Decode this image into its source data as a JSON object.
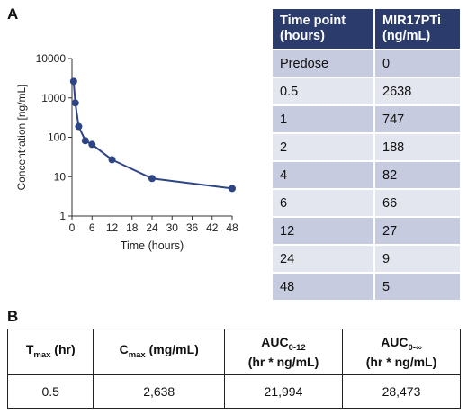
{
  "panels": {
    "a": "A",
    "b": "B"
  },
  "chart_data": {
    "type": "line",
    "xlabel": "Time (hours)",
    "ylabel": "Concentration [ng/mL]",
    "y_scale": "log",
    "xlim": [
      0,
      48
    ],
    "ylim": [
      1,
      10000
    ],
    "x_ticks": [
      "0",
      "6",
      "12",
      "18",
      "24",
      "30",
      "36",
      "42",
      "48"
    ],
    "y_ticks": [
      "1",
      "10",
      "100",
      "1000",
      "10000"
    ],
    "color": "#2e4585",
    "series": [
      {
        "x": [
          0.5,
          1,
          2,
          4,
          6,
          12,
          24,
          48
        ],
        "y": [
          2638,
          747,
          188,
          82,
          66,
          27,
          9,
          5
        ]
      }
    ]
  },
  "pk_table": {
    "headers": [
      "Time point (hours)",
      "MIR17PTi (ng/mL)"
    ],
    "rows": [
      [
        "Predose",
        "0"
      ],
      [
        "0.5",
        "2638"
      ],
      [
        "1",
        "747"
      ],
      [
        "2",
        "188"
      ],
      [
        "4",
        "82"
      ],
      [
        "6",
        "66"
      ],
      [
        "12",
        "27"
      ],
      [
        "24",
        "9"
      ],
      [
        "48",
        "5"
      ]
    ]
  },
  "params_table": {
    "headers": [
      {
        "main": "T",
        "sub": "max",
        "rest": " (hr)"
      },
      {
        "main": "C",
        "sub": "max",
        "rest": " (mg/mL)"
      },
      {
        "main": "AUC",
        "sub": "0-12",
        "line2": "(hr * ng/mL)"
      },
      {
        "main": "AUC",
        "sub": "0-∞",
        "line2": "(hr * ng/mL)"
      }
    ],
    "values": [
      "0.5",
      "2,638",
      "21,994",
      "28,473"
    ]
  }
}
